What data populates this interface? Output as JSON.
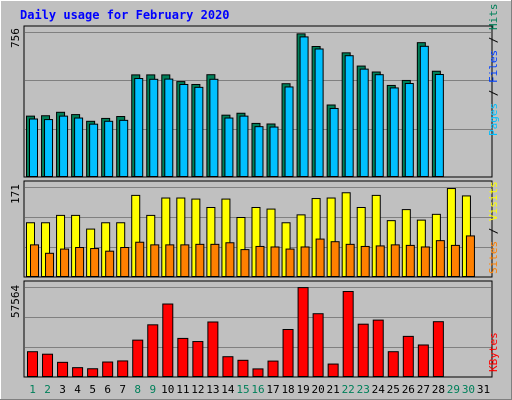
{
  "title": "Daily usage for February 2020",
  "colors": {
    "background": "#c0c0c0",
    "panel": "#c0c0c0",
    "title": "#0000ff",
    "hits": "#00c0ff",
    "files": "#0040ff",
    "pages": "#00c0ff",
    "hits_color_label": "#00805a",
    "files_color_label": "#0040ff",
    "pages_color_label": "#00c0ff",
    "visits": "#ffff00",
    "sites": "#ff8000",
    "kbytes": "#ff0000",
    "weekend_day": "#00805a",
    "weekday_day": "#000000"
  },
  "chart_data": [
    {
      "type": "bar",
      "panel": "hits-files-pages",
      "max_label": "756",
      "ylim": [
        0,
        756
      ],
      "legend": {
        "pages": "Pages",
        "sep1": " / ",
        "files": "Files",
        "sep2": " / ",
        "hits": "Hits"
      },
      "categories": [
        "1",
        "2",
        "3",
        "4",
        "5",
        "6",
        "7",
        "8",
        "9",
        "10",
        "11",
        "12",
        "13",
        "14",
        "15",
        "16",
        "17",
        "18",
        "19",
        "20",
        "21",
        "22",
        "23",
        "24",
        "25",
        "26",
        "27",
        "28",
        "29",
        "30",
        "31"
      ],
      "series": [
        {
          "name": "Hits",
          "values": [
            320,
            322,
            340,
            328,
            293,
            308,
            318,
            535,
            535,
            535,
            500,
            485,
            536,
            325,
            335,
            282,
            279,
            489,
            749,
            683,
            378,
            650,
            581,
            550,
            480,
            506,
            703,
            554,
            0,
            0,
            0
          ]
        },
        {
          "name": "Files",
          "values": [
            305,
            302,
            320,
            310,
            278,
            293,
            298,
            516,
            512,
            513,
            485,
            470,
            512,
            310,
            320,
            265,
            263,
            472,
            733,
            670,
            360,
            635,
            565,
            536,
            467,
            490,
            684,
            537,
            0,
            0,
            0
          ]
        }
      ]
    },
    {
      "type": "bar",
      "panel": "visits-sites",
      "max_label": "171",
      "ylim": [
        0,
        171
      ],
      "legend": {
        "sites": "Sites",
        "sep": " / ",
        "visits": "Visits"
      },
      "categories": [
        "1",
        "2",
        "3",
        "4",
        "5",
        "6",
        "7",
        "8",
        "9",
        "10",
        "11",
        "12",
        "13",
        "14",
        "15",
        "16",
        "17",
        "18",
        "19",
        "20",
        "21",
        "22",
        "23",
        "24",
        "25",
        "26",
        "27",
        "28",
        "29",
        "30",
        "31"
      ],
      "series": [
        {
          "name": "Visits",
          "values": [
            104,
            104,
            118,
            118,
            92,
            104,
            104,
            156,
            118,
            151,
            151,
            149,
            133,
            149,
            114,
            133,
            130,
            104,
            119,
            150,
            151,
            161,
            133,
            156,
            108,
            129,
            109,
            120,
            169,
            155,
            0
          ]
        },
        {
          "name": "Sites",
          "values": [
            62,
            46,
            54,
            57,
            55,
            50,
            57,
            67,
            62,
            62,
            62,
            63,
            63,
            66,
            53,
            59,
            58,
            54,
            58,
            73,
            68,
            63,
            59,
            60,
            62,
            61,
            58,
            70,
            61,
            79,
            0
          ]
        }
      ]
    },
    {
      "type": "bar",
      "panel": "kbytes",
      "max_label": "57564",
      "ylim": [
        0,
        57564
      ],
      "legend": {
        "kbytes": "KBytes"
      },
      "categories": [
        "1",
        "2",
        "3",
        "4",
        "5",
        "6",
        "7",
        "8",
        "9",
        "10",
        "11",
        "12",
        "13",
        "14",
        "15",
        "16",
        "17",
        "18",
        "19",
        "20",
        "21",
        "22",
        "23",
        "24",
        "25",
        "26",
        "27",
        "28",
        "29",
        "30",
        "31"
      ],
      "series": [
        {
          "name": "KBytes",
          "values": [
            16500,
            14900,
            9700,
            6300,
            5600,
            9900,
            10600,
            23900,
            33700,
            47000,
            25000,
            23000,
            35500,
            13300,
            11000,
            5500,
            10500,
            30700,
            57500,
            40800,
            8600,
            55000,
            34100,
            36700,
            16500,
            26300,
            20800,
            35700,
            0,
            0,
            0
          ]
        }
      ]
    }
  ],
  "days": [
    "1",
    "2",
    "3",
    "4",
    "5",
    "6",
    "7",
    "8",
    "9",
    "10",
    "11",
    "12",
    "13",
    "14",
    "15",
    "16",
    "17",
    "18",
    "19",
    "20",
    "21",
    "22",
    "23",
    "24",
    "25",
    "26",
    "27",
    "28",
    "29",
    "30",
    "31"
  ],
  "weekend_days": [
    "1",
    "2",
    "8",
    "9",
    "15",
    "16",
    "22",
    "23",
    "29",
    "30"
  ]
}
